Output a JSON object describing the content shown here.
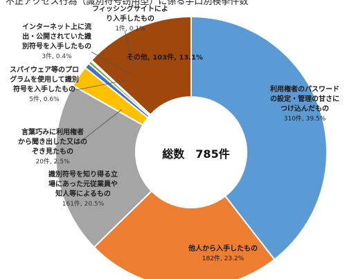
{
  "chart_data": {
    "type": "pie",
    "title": "不正アクセス行為（識別符号窃用型）に係る手口別検挙件数",
    "center_label": "総数　785件",
    "slices": [
      {
        "lines": [
          "利用権者のパスワード",
          "の設定・管理の甘さに",
          "つけ込んだもの"
        ],
        "value_text": "310件, 39.5%",
        "count": 310,
        "percent": 39.5,
        "color": "#5B9BD5"
      },
      {
        "lines": [
          "他人から入手したもの"
        ],
        "value_text": "182件, 23.2%",
        "count": 182,
        "percent": 23.2,
        "color": "#ED7D31"
      },
      {
        "lines": [
          "識別符号を知り得る立",
          "場にあった元従業員や",
          "知人等によるもの"
        ],
        "value_text": "161件, 20.5%",
        "count": 161,
        "percent": 20.5,
        "color": "#A5A5A5"
      },
      {
        "lines": [
          "言葉巧みに利用権者",
          "から聞き出した又はの",
          "ぞき見たもの"
        ],
        "value_text": "20件, 2.5%",
        "count": 20,
        "percent": 2.5,
        "color": "#FFC000"
      },
      {
        "lines": [
          "スパイウェア等のプロ",
          "グラムを使用して識別",
          "符号を入手したもの"
        ],
        "value_text": "5件, 0.6%",
        "count": 5,
        "percent": 0.6,
        "color": "#4472C4"
      },
      {
        "lines": [
          "インターネット上に流",
          "出・公開されていた識",
          "別符号を入手したもの"
        ],
        "value_text": "3件, 0.4%",
        "count": 3,
        "percent": 0.4,
        "color": "#70AD47"
      },
      {
        "lines": [
          "フィッシングサイトによ",
          "り入手したもの"
        ],
        "value_text": "1件, 0.1%",
        "count": 1,
        "percent": 0.1,
        "color": "#264478"
      },
      {
        "lines": [
          "その他"
        ],
        "value_text": "103件, 13.1%",
        "count": 103,
        "percent": 13.1,
        "color": "#9E480E",
        "inline": true
      }
    ]
  }
}
